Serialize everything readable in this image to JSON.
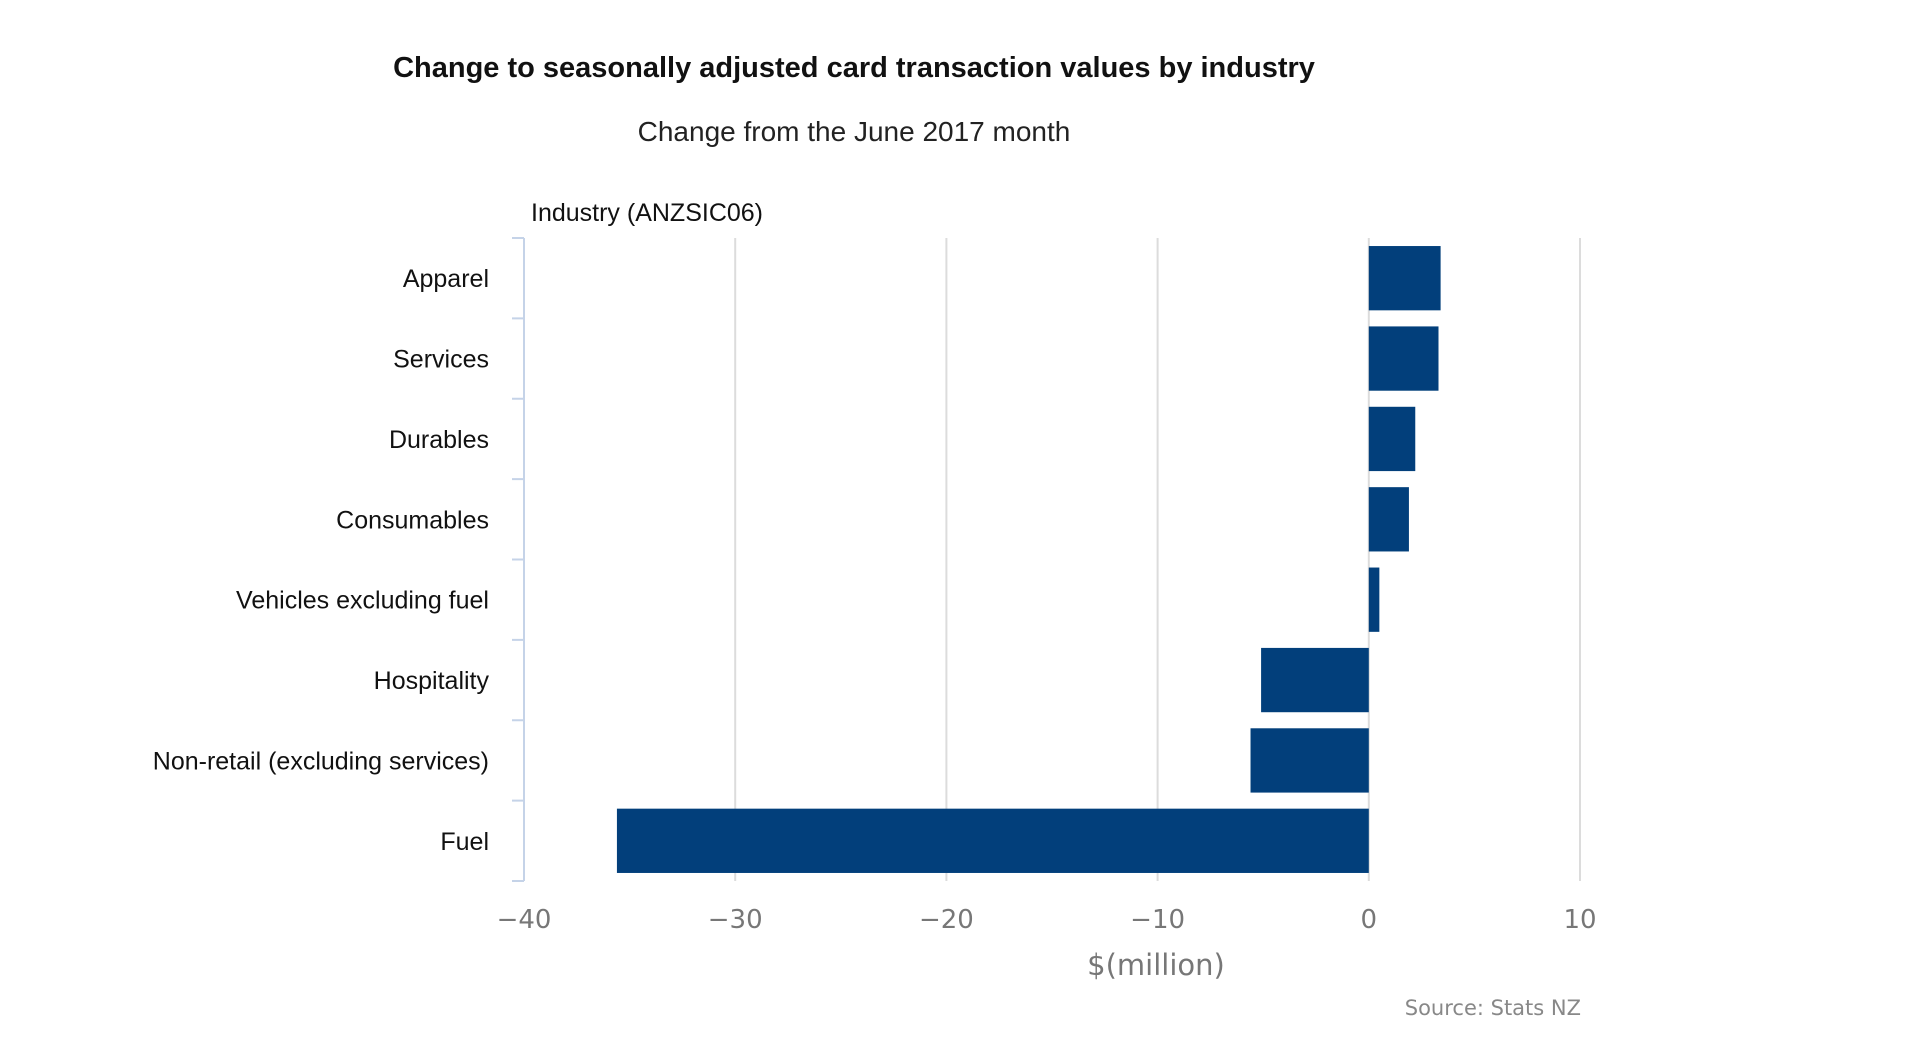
{
  "chart_data": {
    "type": "bar",
    "orientation": "horizontal",
    "title": "Change to seasonally adjusted card transaction values by industry",
    "subtitle": "Change from the June 2017 month",
    "ylabel": "Industry (ANZSIC06)",
    "xlabel": "$(million)",
    "source": "Source: Stats NZ",
    "categories": [
      "Apparel",
      "Services",
      "Durables",
      "Consumables",
      "Vehicles excluding fuel",
      "Hospitality",
      "Non-retail (excluding services)",
      "Fuel"
    ],
    "values": [
      3.4,
      3.3,
      2.2,
      1.9,
      0.5,
      -5.1,
      -5.6,
      -35.6
    ],
    "xlim": [
      -40,
      10
    ],
    "xticks": [
      -40,
      -30,
      -20,
      -10,
      0,
      10
    ],
    "xtick_labels": [
      "−40",
      "−30",
      "−20",
      "−10",
      "0",
      "10"
    ],
    "grid": true,
    "legend": "none",
    "bar_color": "#023f7b"
  }
}
